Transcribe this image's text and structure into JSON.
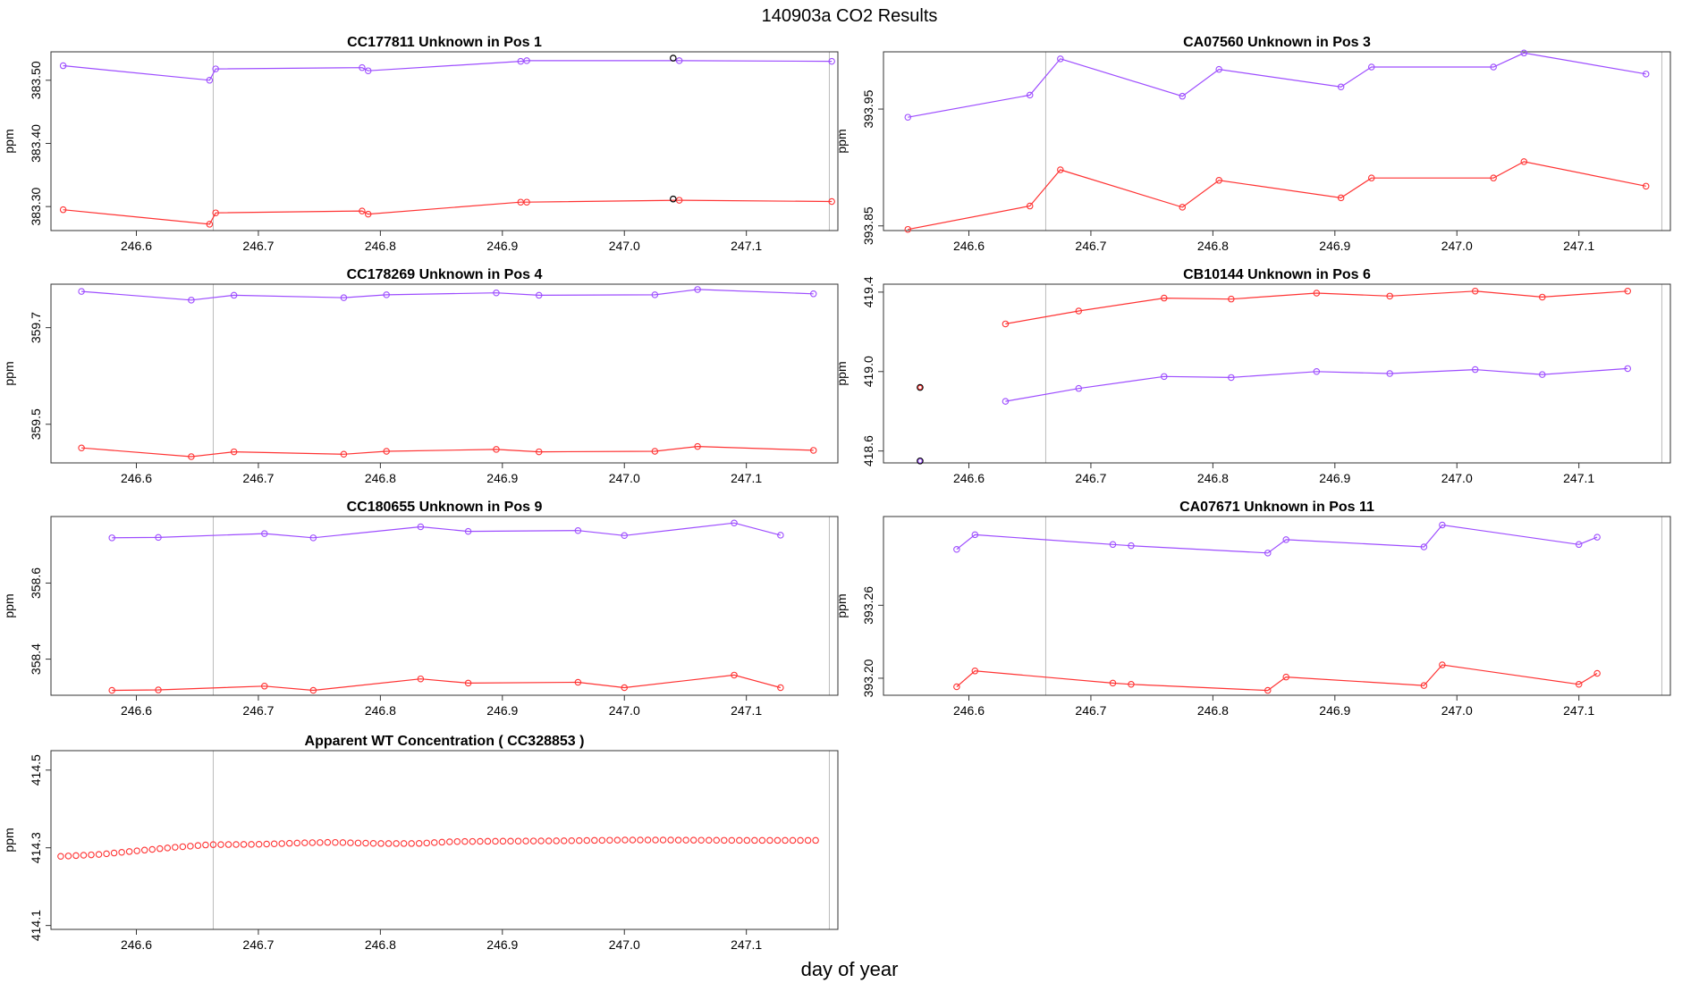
{
  "page_title": "140903a  CO2 Results",
  "x_axis_label": "day of year",
  "colors": {
    "red_series": "#ff3333",
    "purple_series": "#9d4dff",
    "flag_point": "#000000",
    "reference_line": "#bbbbbb"
  },
  "chart_data": [
    {
      "type": "line",
      "title": "CC177811    Unknown in Pos 1",
      "ylabel": "ppm",
      "xlim": [
        246.53,
        247.175
      ],
      "ylim": [
        383.262,
        383.545
      ],
      "xticks": [
        "246.6",
        "246.7",
        "246.8",
        "246.9",
        "247.0",
        "247.1"
      ],
      "yticks": [
        "383.30",
        "383.40",
        "383.50"
      ],
      "reference_lines_x": [
        246.663,
        247.168
      ],
      "series": [
        {
          "color": "red",
          "x": [
            246.54,
            246.66,
            246.665,
            246.785,
            246.79,
            246.915,
            246.92,
            247.045,
            247.17
          ],
          "y": [
            383.295,
            383.272,
            383.29,
            383.293,
            383.288,
            383.307,
            383.307,
            383.31,
            383.308
          ]
        },
        {
          "color": "purple",
          "x": [
            246.54,
            246.66,
            246.665,
            246.785,
            246.79,
            246.915,
            246.92,
            247.045,
            247.17
          ],
          "y": [
            383.523,
            383.5,
            383.518,
            383.52,
            383.515,
            383.53,
            383.531,
            383.531,
            383.53
          ]
        }
      ],
      "flagged_points": [
        {
          "x": 247.04,
          "y": 383.312
        },
        {
          "x": 247.04,
          "y": 383.535
        }
      ]
    },
    {
      "type": "line",
      "title": "CA07560    Unknown in Pos 3",
      "ylabel": "ppm",
      "xlim": [
        246.53,
        247.175
      ],
      "ylim": [
        393.846,
        393.999
      ],
      "xticks": [
        "246.6",
        "246.7",
        "246.8",
        "246.9",
        "247.0",
        "247.1"
      ],
      "yticks": [
        "393.85",
        "393.95"
      ],
      "reference_lines_x": [
        246.663,
        247.168
      ],
      "series": [
        {
          "color": "red",
          "x": [
            246.55,
            246.65,
            246.675,
            246.775,
            246.805,
            246.905,
            246.93,
            247.03,
            247.055,
            247.155
          ],
          "y": [
            393.847,
            393.867,
            393.898,
            393.866,
            393.889,
            393.874,
            393.891,
            393.891,
            393.905,
            393.884
          ]
        },
        {
          "color": "purple",
          "x": [
            246.55,
            246.65,
            246.675,
            246.775,
            246.805,
            246.905,
            246.93,
            247.03,
            247.055,
            247.155
          ],
          "y": [
            393.943,
            393.962,
            393.993,
            393.961,
            393.984,
            393.969,
            393.986,
            393.986,
            393.998,
            393.98
          ]
        }
      ]
    },
    {
      "type": "line",
      "title": "CC178269    Unknown in Pos 4",
      "ylabel": "ppm",
      "xlim": [
        246.53,
        247.175
      ],
      "ylim": [
        359.42,
        359.79
      ],
      "xticks": [
        "246.6",
        "246.7",
        "246.8",
        "246.9",
        "247.0",
        "247.1"
      ],
      "yticks": [
        "359.5",
        "359.7"
      ],
      "reference_lines_x": [
        246.663
      ],
      "series": [
        {
          "color": "red",
          "x": [
            246.555,
            246.645,
            246.68,
            246.77,
            246.805,
            246.895,
            246.93,
            247.025,
            247.06,
            247.155
          ],
          "y": [
            359.451,
            359.433,
            359.443,
            359.438,
            359.444,
            359.448,
            359.443,
            359.444,
            359.454,
            359.446
          ]
        },
        {
          "color": "purple",
          "x": [
            246.555,
            246.645,
            246.68,
            246.77,
            246.805,
            246.895,
            246.93,
            247.025,
            247.06,
            247.155
          ],
          "y": [
            359.775,
            359.757,
            359.767,
            359.762,
            359.768,
            359.772,
            359.767,
            359.768,
            359.779,
            359.77
          ]
        }
      ]
    },
    {
      "type": "line",
      "title": "CB10144    Unknown in Pos 6",
      "ylabel": "ppm",
      "xlim": [
        246.53,
        247.175
      ],
      "ylim": [
        418.54,
        419.44
      ],
      "xticks": [
        "246.6",
        "246.7",
        "246.8",
        "246.9",
        "247.0",
        "247.1"
      ],
      "yticks": [
        "418.6",
        "419.0",
        "419.4"
      ],
      "reference_lines_x": [
        246.663,
        247.168
      ],
      "series": [
        {
          "color": "red",
          "x": [
            246.63,
            246.69,
            246.76,
            246.815,
            246.885,
            246.945,
            247.015,
            247.07,
            247.14
          ],
          "y": [
            419.24,
            419.305,
            419.37,
            419.365,
            419.395,
            419.38,
            419.405,
            419.375,
            419.405
          ]
        },
        {
          "color": "purple",
          "x": [
            246.63,
            246.69,
            246.76,
            246.815,
            246.885,
            246.945,
            247.015,
            247.07,
            247.14
          ],
          "y": [
            418.85,
            418.915,
            418.975,
            418.97,
            419.0,
            418.99,
            419.01,
            418.985,
            419.015
          ]
        }
      ],
      "flagged_points": [
        {
          "x": 246.56,
          "y": 418.92,
          "color": "red"
        },
        {
          "x": 246.56,
          "y": 418.55,
          "color": "purple"
        }
      ]
    },
    {
      "type": "line",
      "title": "CC180655    Unknown in Pos 9",
      "ylabel": "ppm",
      "xlim": [
        246.53,
        247.175
      ],
      "ylim": [
        358.305,
        358.775
      ],
      "xticks": [
        "246.6",
        "246.7",
        "246.8",
        "246.9",
        "247.0",
        "247.1"
      ],
      "yticks": [
        "358.4",
        "358.6"
      ],
      "reference_lines_x": [
        246.663,
        247.168
      ],
      "series": [
        {
          "color": "red",
          "x": [
            246.58,
            246.618,
            246.705,
            246.745,
            246.833,
            246.872,
            246.962,
            247.0,
            247.09,
            247.128
          ],
          "y": [
            358.318,
            358.319,
            358.329,
            358.318,
            358.348,
            358.337,
            358.339,
            358.325,
            358.358,
            358.325
          ]
        },
        {
          "color": "purple",
          "x": [
            246.58,
            246.618,
            246.705,
            246.745,
            246.833,
            246.872,
            246.962,
            247.0,
            247.09,
            247.128
          ],
          "y": [
            358.719,
            358.72,
            358.73,
            358.719,
            358.748,
            358.736,
            358.738,
            358.725,
            358.758,
            358.726
          ]
        }
      ]
    },
    {
      "type": "line",
      "title": "CA07671    Unknown in Pos 11",
      "ylabel": "ppm",
      "xlim": [
        246.53,
        247.175
      ],
      "ylim": [
        393.186,
        393.333
      ],
      "xticks": [
        "246.6",
        "246.7",
        "246.8",
        "246.9",
        "247.0",
        "247.1"
      ],
      "yticks": [
        "393.20",
        "393.26"
      ],
      "reference_lines_x": [
        246.663,
        247.168
      ],
      "series": [
        {
          "color": "red",
          "x": [
            246.59,
            246.605,
            246.718,
            246.733,
            246.845,
            246.86,
            246.973,
            246.988,
            247.1,
            247.115
          ],
          "y": [
            393.193,
            393.206,
            393.196,
            393.195,
            393.19,
            393.201,
            393.194,
            393.211,
            393.195,
            393.204
          ]
        },
        {
          "color": "purple",
          "x": [
            246.59,
            246.605,
            246.718,
            246.733,
            246.845,
            246.86,
            246.973,
            246.988,
            247.1,
            247.115
          ],
          "y": [
            393.306,
            393.318,
            393.31,
            393.309,
            393.303,
            393.314,
            393.308,
            393.326,
            393.31,
            393.316
          ]
        }
      ]
    },
    {
      "type": "scatter",
      "title": "Apparent WT Concentration ( CC328853 )",
      "ylabel": "ppm",
      "xlim": [
        246.53,
        247.175
      ],
      "ylim": [
        414.09,
        414.55
      ],
      "xticks": [
        "246.6",
        "246.7",
        "246.8",
        "246.9",
        "247.0",
        "247.1"
      ],
      "yticks": [
        "414.1",
        "414.3",
        "414.5"
      ],
      "reference_lines_x": [
        246.663,
        247.168
      ],
      "series": [
        {
          "color": "red",
          "x_start": 246.538,
          "x_step": 0.00625,
          "count": 100,
          "y_profile_x": [
            246.538,
            246.57,
            246.6,
            246.63,
            246.66,
            246.7,
            246.74,
            246.76,
            246.8,
            246.83,
            246.86,
            246.9,
            246.95,
            247.0,
            247.03,
            247.1,
            247.167
          ],
          "y_profile_y": [
            414.278,
            414.283,
            414.292,
            414.301,
            414.308,
            414.309,
            414.313,
            414.314,
            414.311,
            414.311,
            414.316,
            414.317,
            414.318,
            414.32,
            414.32,
            414.319,
            414.319
          ]
        }
      ]
    }
  ]
}
